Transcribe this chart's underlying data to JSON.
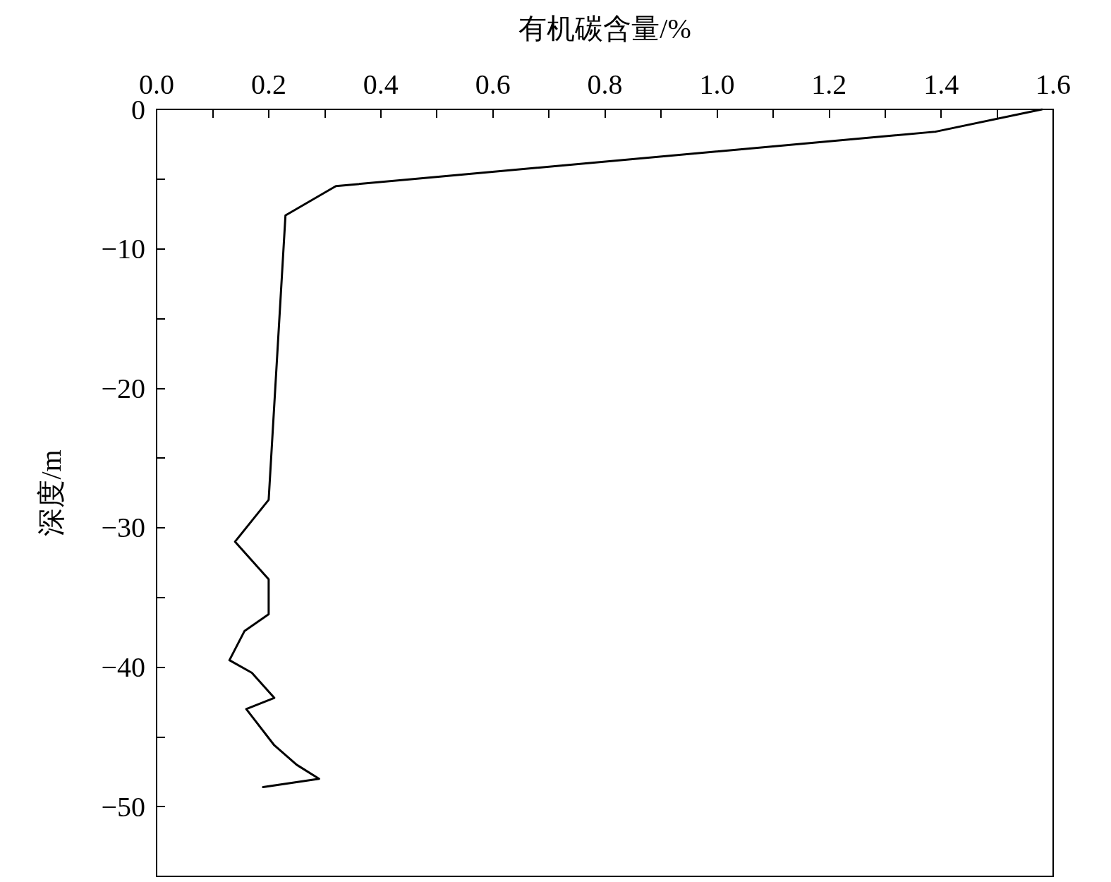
{
  "chart_data": {
    "type": "line",
    "xlabel": "有机碳含量/%",
    "ylabel": "深度/m",
    "xlim": [
      0,
      1.6
    ],
    "xticks": [
      {
        "value": 0,
        "label": "0.0"
      },
      {
        "value": 0.1,
        "label": null
      },
      {
        "value": 0.2,
        "label": "0.2"
      },
      {
        "value": 0.3,
        "label": null
      },
      {
        "value": 0.4,
        "label": "0.4"
      },
      {
        "value": 0.5,
        "label": null
      },
      {
        "value": 0.6,
        "label": "0.6"
      },
      {
        "value": 0.7,
        "label": null
      },
      {
        "value": 0.8,
        "label": "0.8"
      },
      {
        "value": 0.9,
        "label": null
      },
      {
        "value": 1.0,
        "label": "1.0"
      },
      {
        "value": 1.1,
        "label": null
      },
      {
        "value": 1.2,
        "label": "1.2"
      },
      {
        "value": 1.3,
        "label": null
      },
      {
        "value": 1.4,
        "label": "1.4"
      },
      {
        "value": 1.5,
        "label": null
      },
      {
        "value": 1.6,
        "label": "1.6"
      }
    ],
    "ylim": [
      -55,
      0
    ],
    "yticks": [
      0,
      {
        "value": -5,
        "label": null
      },
      {
        "value": -10,
        "label": "−10"
      },
      {
        "value": -15,
        "label": null
      },
      {
        "value": -20,
        "label": "−20"
      },
      {
        "value": -25,
        "label": null
      },
      {
        "value": -30,
        "label": "−30"
      },
      {
        "value": -35,
        "label": null
      },
      {
        "value": -40,
        "label": "−40"
      },
      {
        "value": -45,
        "label": null
      },
      {
        "value": -50,
        "label": "−50"
      }
    ],
    "grid": false,
    "marker": "none",
    "line_style": "solid",
    "series": [
      {
        "color": "#000000",
        "x": [
          1.58,
          1.39,
          0.32,
          0.23,
          0.2,
          0.14,
          0.2,
          0.2,
          0.157,
          0.13,
          0.17,
          0.21,
          0.16,
          0.21,
          0.25,
          0.29,
          0.19
        ],
        "values": [
          0,
          -1.6,
          -5.5,
          -7.6,
          -28.0,
          -31.0,
          -33.7,
          -36.2,
          -37.4,
          -39.5,
          -40.4,
          -42.2,
          -43.0,
          -45.6,
          -47.0,
          -48.0,
          -48.6
        ]
      }
    ]
  }
}
